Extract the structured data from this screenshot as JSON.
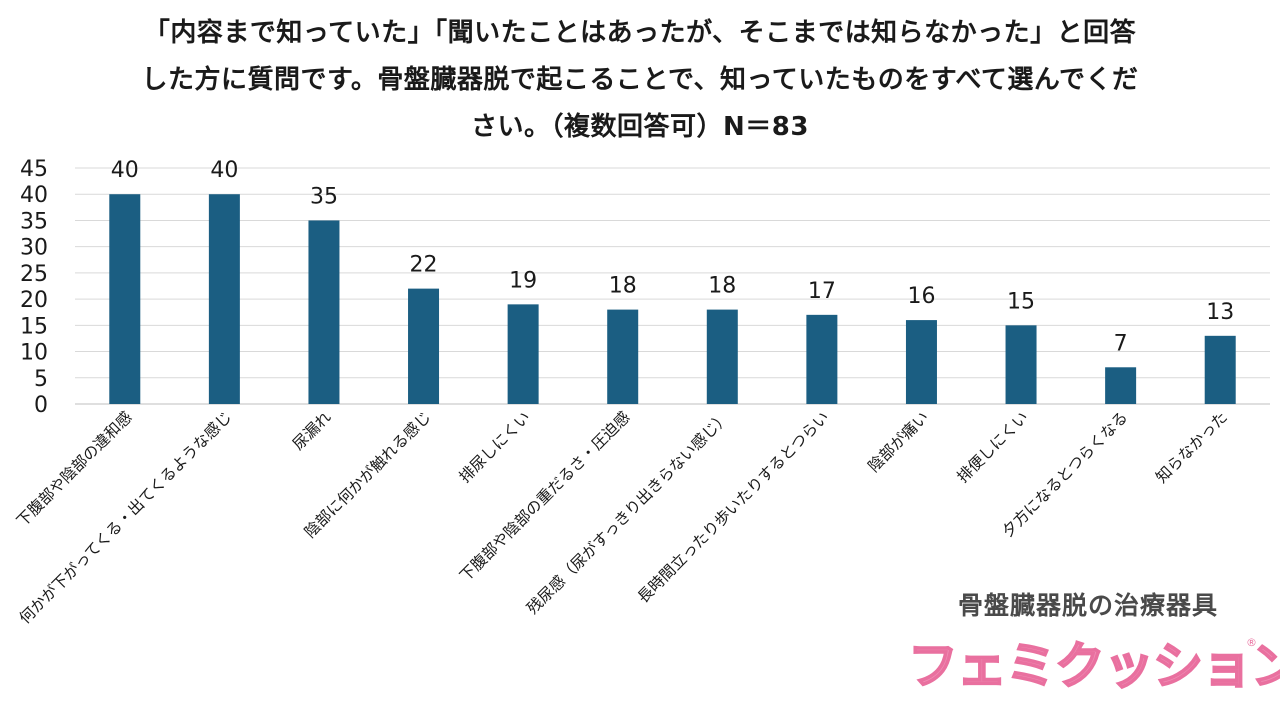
{
  "title": {
    "line1": "「内容まで知っていた」「聞いたことはあったが、そこまでは知らなかった」と回答",
    "line2": "した方に質問です。骨盤臓器脱で起こることで、知っていたものをすべて選んでくだ",
    "line3": "さい。（複数回答可）N＝83"
  },
  "chart_data": {
    "type": "bar",
    "categories": [
      "下腹部や陰部の違和感",
      "何かが下がってくる・出てくるような感じ",
      "尿漏れ",
      "陰部に何かが触れる感じ",
      "排尿しにくい",
      "下腹部や陰部の重だるさ・圧迫感",
      "残尿感（尿がすっきり出きらない感じ）",
      "長時間立ったり歩いたりするとつらい",
      "陰部が痛い",
      "排便しにくい",
      "夕方になるとつらくなる",
      "知らなかった"
    ],
    "values": [
      40,
      40,
      35,
      22,
      19,
      18,
      18,
      17,
      16,
      15,
      7,
      13
    ],
    "ylim": [
      0,
      45
    ],
    "yticks": [
      0,
      5,
      10,
      15,
      20,
      25,
      30,
      35,
      40,
      45
    ],
    "grid": true,
    "bar_color": "#1b5e82"
  },
  "brand": {
    "subtitle": "骨盤臓器脱の治療器具",
    "logo": "フェミクッション",
    "registered": "®",
    "color": "#ef8db5"
  }
}
